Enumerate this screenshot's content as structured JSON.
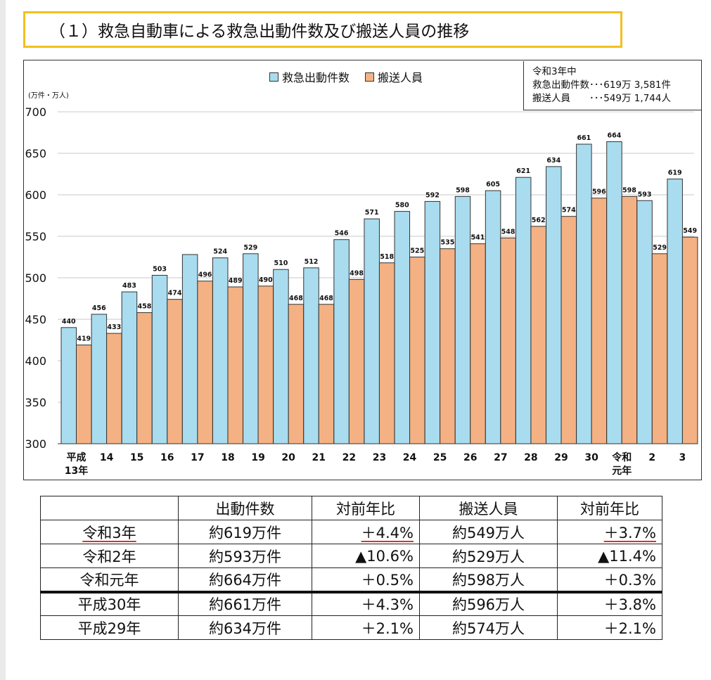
{
  "title": "（１）救急自動車による救急出動件数及び搬送人員の推移",
  "chart_data": {
    "type": "bar",
    "unit_label": "(万件・万人)",
    "ylim": [
      300,
      700
    ],
    "yticks": [
      300,
      350,
      400,
      450,
      500,
      550,
      600,
      650,
      700
    ],
    "grid": true,
    "legend_position": "top-center",
    "categories": [
      "平成\n13年",
      "14",
      "15",
      "16",
      "17",
      "18",
      "19",
      "20",
      "21",
      "22",
      "23",
      "24",
      "25",
      "26",
      "27",
      "28",
      "29",
      "30",
      "令和\n元年",
      "2",
      "3"
    ],
    "series": [
      {
        "name": "救急出動件数",
        "color": "#a9dcef",
        "values": [
          440,
          456,
          483,
          503,
          528,
          524,
          529,
          510,
          512,
          546,
          571,
          580,
          592,
          598,
          605,
          621,
          634,
          661,
          664,
          593,
          619
        ],
        "labels": [
          "440",
          "456",
          "483",
          "503",
          "",
          "524",
          "529",
          "510",
          "512",
          "546",
          "571",
          "580",
          "592",
          "598",
          "605",
          "621",
          "634",
          "661",
          "664",
          "593",
          "619"
        ]
      },
      {
        "name": "搬送人員",
        "color": "#f4b183",
        "values": [
          419,
          433,
          458,
          474,
          496,
          489,
          490,
          468,
          468,
          498,
          518,
          525,
          535,
          541,
          548,
          562,
          574,
          596,
          598,
          529,
          549
        ],
        "labels": [
          "419",
          "433",
          "458",
          "474",
          "496",
          "489",
          "490",
          "468",
          "468",
          "498",
          "518",
          "525",
          "535",
          "541",
          "548",
          "562",
          "574",
          "596",
          "598",
          "529",
          "549"
        ]
      }
    ],
    "annotation": {
      "line1": "令和3年中",
      "line2": "救急出動件数･･･619万 3,581件",
      "line3": "搬送人員　　･･･549万 1,744人"
    }
  },
  "table": {
    "headers": [
      "",
      "出動件数",
      "対前年比",
      "搬送人員",
      "対前年比"
    ],
    "rows": [
      [
        "令和3年",
        "約619万件",
        "＋4.4%",
        "約549万人",
        "＋3.7%"
      ],
      [
        "令和2年",
        "約593万件",
        "▲10.6%",
        "約529万人",
        "▲11.4%"
      ],
      [
        "令和元年",
        "約664万件",
        "＋0.5%",
        "約598万人",
        "＋0.3%"
      ],
      [
        "平成30年",
        "約661万件",
        "＋4.3%",
        "約596万人",
        "＋3.8%"
      ],
      [
        "平成29年",
        "約634万件",
        "＋2.1%",
        "約574万人",
        "＋2.1%"
      ]
    ]
  }
}
